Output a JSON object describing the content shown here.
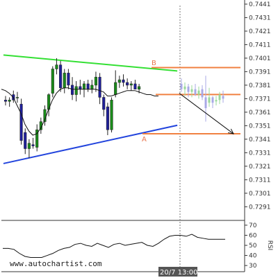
{
  "chart_data": {
    "type": "candlestick",
    "title": "",
    "grid": false,
    "price_axis": {
      "ticks": [
        "0.7441",
        "0.7431",
        "0.7421",
        "0.7411",
        "0.7401",
        "0.7391",
        "0.7381",
        "0.7371",
        "0.7361",
        "0.7351",
        "0.7341",
        "0.7331",
        "0.7321",
        "0.7311",
        "0.7301",
        "0.7291"
      ],
      "range": [
        0.7285,
        0.7442
      ]
    },
    "rsi_axis": {
      "label": "RSI",
      "ticks": [
        "70",
        "60",
        "50",
        "40",
        "30"
      ],
      "range": [
        28,
        72
      ]
    },
    "time_label": "20/7 13:00",
    "watermark": "www.autochartist.com",
    "candles": [
      {
        "o": 0.737,
        "h": 0.7373,
        "l": 0.7366,
        "c": 0.7369
      },
      {
        "o": 0.7369,
        "h": 0.7372,
        "l": 0.7365,
        "c": 0.737
      },
      {
        "o": 0.7374,
        "h": 0.7377,
        "l": 0.7368,
        "c": 0.737
      },
      {
        "o": 0.7372,
        "h": 0.7376,
        "l": 0.7368,
        "c": 0.7372
      },
      {
        "o": 0.7367,
        "h": 0.7371,
        "l": 0.7337,
        "c": 0.734
      },
      {
        "o": 0.7346,
        "h": 0.7349,
        "l": 0.733,
        "c": 0.7334
      },
      {
        "o": 0.7334,
        "h": 0.7341,
        "l": 0.7327,
        "c": 0.7338
      },
      {
        "o": 0.7337,
        "h": 0.7342,
        "l": 0.7334,
        "c": 0.7336
      },
      {
        "o": 0.7335,
        "h": 0.7352,
        "l": 0.7332,
        "c": 0.7348
      },
      {
        "o": 0.7348,
        "h": 0.7357,
        "l": 0.7345,
        "c": 0.7354
      },
      {
        "o": 0.7354,
        "h": 0.7366,
        "l": 0.7351,
        "c": 0.7363
      },
      {
        "o": 0.7363,
        "h": 0.7375,
        "l": 0.7358,
        "c": 0.7374
      },
      {
        "o": 0.7375,
        "h": 0.7395,
        "l": 0.7372,
        "c": 0.7393
      },
      {
        "o": 0.7393,
        "h": 0.7401,
        "l": 0.7389,
        "c": 0.7396
      },
      {
        "o": 0.7396,
        "h": 0.7399,
        "l": 0.7376,
        "c": 0.7379
      },
      {
        "o": 0.7379,
        "h": 0.7393,
        "l": 0.7375,
        "c": 0.739
      },
      {
        "o": 0.739,
        "h": 0.7393,
        "l": 0.7378,
        "c": 0.7381
      },
      {
        "o": 0.7381,
        "h": 0.7387,
        "l": 0.737,
        "c": 0.7374
      },
      {
        "o": 0.7374,
        "h": 0.7384,
        "l": 0.7369,
        "c": 0.738
      },
      {
        "o": 0.738,
        "h": 0.7385,
        "l": 0.7374,
        "c": 0.7378
      },
      {
        "o": 0.7378,
        "h": 0.7384,
        "l": 0.7372,
        "c": 0.7382
      },
      {
        "o": 0.7382,
        "h": 0.7385,
        "l": 0.7376,
        "c": 0.7378
      },
      {
        "o": 0.7378,
        "h": 0.7385,
        "l": 0.7375,
        "c": 0.7381
      },
      {
        "o": 0.7381,
        "h": 0.7391,
        "l": 0.7376,
        "c": 0.7387
      },
      {
        "o": 0.7387,
        "h": 0.739,
        "l": 0.7367,
        "c": 0.7372
      },
      {
        "o": 0.7372,
        "h": 0.7374,
        "l": 0.7358,
        "c": 0.7363
      },
      {
        "o": 0.7365,
        "h": 0.7368,
        "l": 0.7344,
        "c": 0.7348
      },
      {
        "o": 0.7348,
        "h": 0.7372,
        "l": 0.7346,
        "c": 0.737
      },
      {
        "o": 0.7374,
        "h": 0.7392,
        "l": 0.7372,
        "c": 0.7383
      },
      {
        "o": 0.7383,
        "h": 0.7388,
        "l": 0.7379,
        "c": 0.7385
      },
      {
        "o": 0.7385,
        "h": 0.7389,
        "l": 0.738,
        "c": 0.7383
      },
      {
        "o": 0.7383,
        "h": 0.7386,
        "l": 0.7378,
        "c": 0.7381
      },
      {
        "o": 0.7381,
        "h": 0.7384,
        "l": 0.7377,
        "c": 0.7382
      },
      {
        "o": 0.7382,
        "h": 0.7385,
        "l": 0.7378,
        "c": 0.7378
      },
      {
        "o": 0.7378,
        "h": 0.7382,
        "l": 0.7375,
        "c": 0.738
      }
    ],
    "forecast_candles": [
      {
        "o": 0.7382,
        "h": 0.7386,
        "l": 0.7376,
        "c": 0.7378
      },
      {
        "o": 0.7378,
        "h": 0.7383,
        "l": 0.7373,
        "c": 0.738
      },
      {
        "o": 0.738,
        "h": 0.7382,
        "l": 0.7372,
        "c": 0.7376
      },
      {
        "o": 0.7376,
        "h": 0.7381,
        "l": 0.7372,
        "c": 0.7378
      },
      {
        "o": 0.7378,
        "h": 0.7382,
        "l": 0.7373,
        "c": 0.7374
      },
      {
        "o": 0.7374,
        "h": 0.738,
        "l": 0.7371,
        "c": 0.7377
      },
      {
        "o": 0.7378,
        "h": 0.7381,
        "l": 0.737,
        "c": 0.7372
      },
      {
        "o": 0.7372,
        "h": 0.7388,
        "l": 0.7354,
        "c": 0.7364
      },
      {
        "o": 0.7368,
        "h": 0.7379,
        "l": 0.7365,
        "c": 0.7372
      },
      {
        "o": 0.7372,
        "h": 0.7373,
        "l": 0.7364,
        "c": 0.7368
      },
      {
        "o": 0.7369,
        "h": 0.7373,
        "l": 0.7366,
        "c": 0.737
      },
      {
        "o": 0.737,
        "h": 0.7376,
        "l": 0.7367,
        "c": 0.7374
      },
      {
        "o": 0.7373,
        "h": 0.7377,
        "l": 0.7368,
        "c": 0.7371
      }
    ],
    "moving_average": [
      0.7378,
      0.7377,
      0.7375,
      0.7372,
      0.7366,
      0.736,
      0.7352,
      0.7347,
      0.7344,
      0.7345,
      0.7349,
      0.7355,
      0.7363,
      0.737,
      0.7375,
      0.7378,
      0.7379,
      0.7379,
      0.7378,
      0.7378,
      0.7378,
      0.7378,
      0.7378,
      0.7378,
      0.7378,
      0.7377,
      0.7376,
      0.7373,
      0.7373,
      0.7374,
      0.7375,
      0.7376,
      0.7377,
      0.7377,
      0.7377,
      0.7376,
      0.7375,
      0.7374,
      0.7374,
      0.7373,
      0.7373
    ],
    "resistance_line": {
      "x": [
        0,
        31
      ],
      "y": [
        0.74033,
        0.73915
      ]
    },
    "support_line": {
      "x": [
        0,
        31
      ],
      "y": [
        0.7323,
        0.73513
      ]
    },
    "level_b": 0.7394,
    "level_a": 0.7345,
    "forecast_arrow": {
      "x": [
        34,
        48
      ],
      "y": [
        0.7375,
        0.7345
      ]
    },
    "points": [
      {
        "label": "B",
        "x": 27,
        "y": 0.7399
      },
      {
        "label": "A",
        "x": 26,
        "y": 0.7338
      }
    ],
    "rsi": [
      47,
      47,
      46,
      42,
      39,
      38,
      38,
      38,
      40,
      42,
      45,
      47,
      48,
      51,
      52,
      50,
      49,
      52,
      50,
      48,
      51,
      52,
      50,
      51,
      52,
      53,
      50,
      49,
      52,
      56,
      59,
      60,
      60,
      59,
      61,
      58,
      57,
      56,
      56,
      56,
      56
    ]
  }
}
